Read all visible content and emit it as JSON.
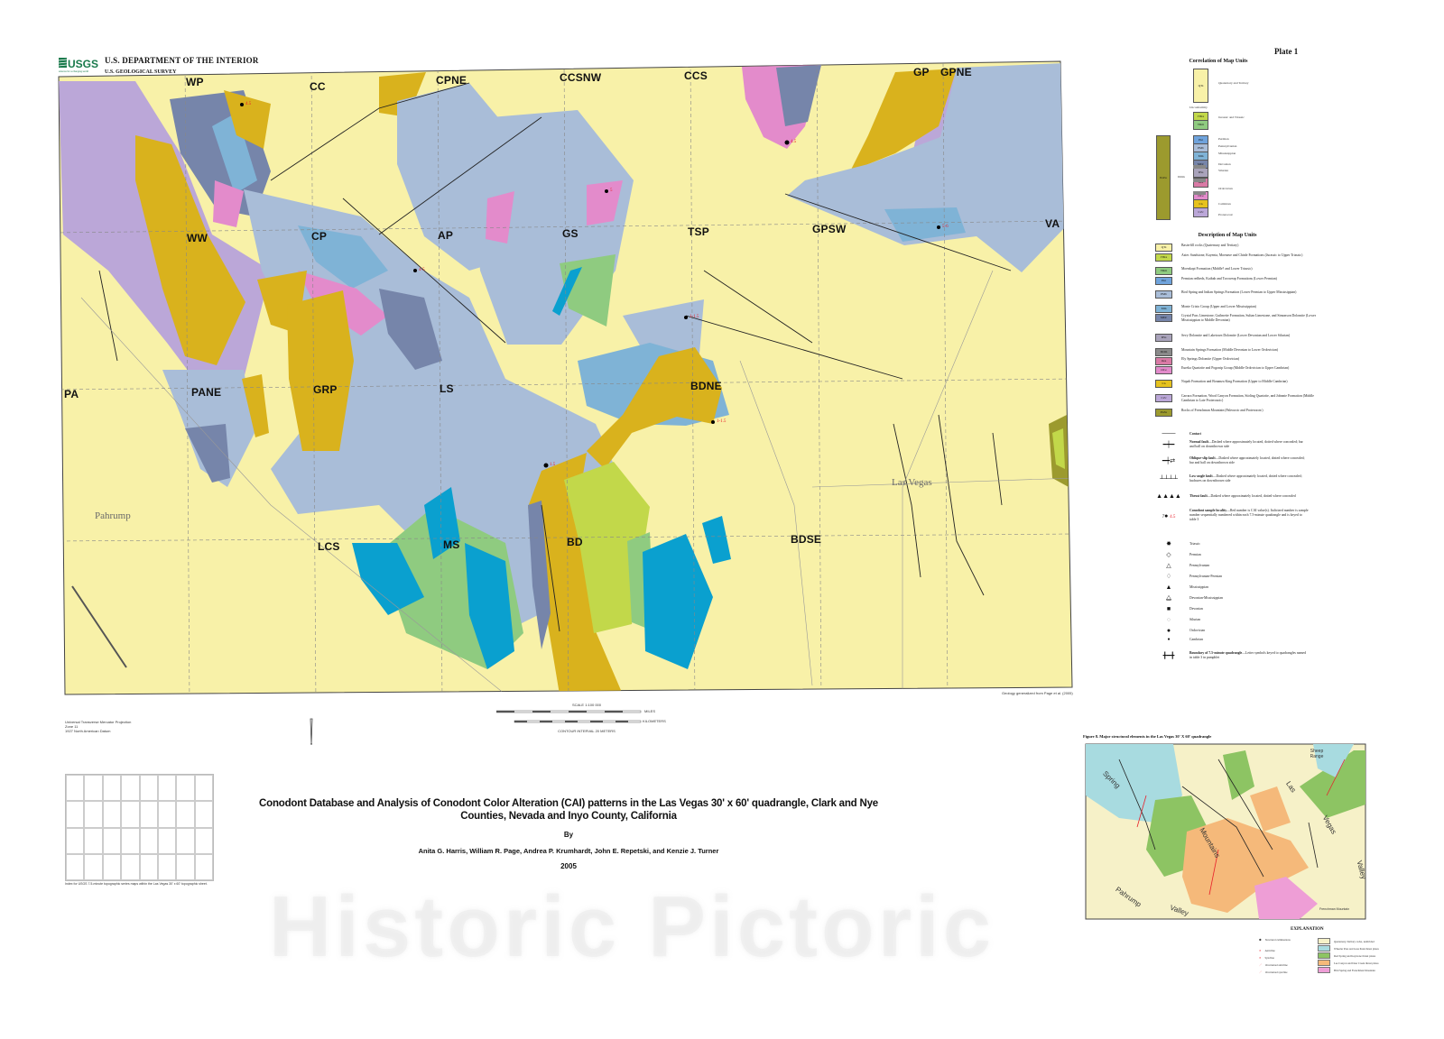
{
  "header": {
    "agency_logo": "USGS",
    "logo_tagline": "science for a changing world",
    "department": "U.S. DEPARTMENT OF THE INTERIOR",
    "survey": "U.S. GEOLOGICAL SURVEY",
    "plate": "Plate 1"
  },
  "map": {
    "quad_labels": [
      "WP",
      "CC",
      "CPNE",
      "CCSNW",
      "CCS",
      "GP",
      "GPNE",
      "WW",
      "CP",
      "AP",
      "GS",
      "TSP",
      "GPSW",
      "VA",
      "PA",
      "PANE",
      "GRP",
      "LS",
      "BDNE",
      "LCS",
      "MS",
      "BD",
      "BDSE"
    ],
    "places": [
      "Pahrump",
      "Las Vegas"
    ],
    "projection": [
      "Universal Transverse Mercator Projection",
      "Zone 11",
      "1927 North American Datum"
    ],
    "scale": {
      "title": "SCALE 1:100 000",
      "miles_label": "MILES",
      "km_label": "KILOMETERS",
      "contour": "CONTOUR INTERVAL 20 METERS"
    },
    "source_note": "Geology generalized from Page et al. (2005)",
    "colors": {
      "basin_fill": "#f8f1a8",
      "gray_blue": "#a9bdd8",
      "slate": "#7685aa",
      "blue": "#0aa0cf",
      "green": "#8fcb80",
      "lime": "#c2d84a",
      "gold": "#d9b21d",
      "purple": "#bba7d8",
      "pink": "#e38bcb",
      "red_cai": "#e8202a"
    }
  },
  "correlation": {
    "title": "Correlation of Map Units",
    "units": [
      "QTs",
      "JTRa",
      "TRm",
      "Pkt",
      "PMb",
      "Mm",
      "MDc",
      "DSs",
      "Oes",
      "OCe",
      "Cn",
      "CZc",
      "PzZu",
      "DOm"
    ],
    "labels": [
      "Quaternary and Tertiary",
      "Jurassic and Triassic",
      "Permian",
      "Pennsylvanian",
      "Mississippian",
      "Devonian",
      "Silurian",
      "Ordovician",
      "Cambrian",
      "Proterozoic"
    ],
    "unconformity": "Unconformity"
  },
  "description": {
    "title": "Description of Map Units",
    "units": [
      {
        "code": "QTs",
        "color": "#f8f1a8",
        "text": "Basin-fill rocks (Quaternary and Tertiary)"
      },
      {
        "code": "JTRa",
        "color": "#c2d84a",
        "text": "Aztec Sandstone, Kayenta, Moenave and Chinle Formations (Jurassic to Upper Triassic)"
      },
      {
        "code": "TRm",
        "color": "#8fcb80",
        "text": "Moenkopi Formation (Middle? and Lower Triassic)"
      },
      {
        "code": "Pkt",
        "color": "#6fa3dc",
        "text": "Permian redbeds, Kaibab and Toroweap Formations (Lower Permian)"
      },
      {
        "code": "PMb",
        "color": "#a9bdd8",
        "text": "Bird Spring and Indian Springs Formation (Lower Permian to Upper Mississippian)"
      },
      {
        "code": "Mm",
        "color": "#7fb3d6",
        "text": "Monte Cristo Group (Upper and Lower Mississippian)"
      },
      {
        "code": "MDc",
        "color": "#7685aa",
        "text": "Crystal Pass Limestone, Guilmette Formation, Sultan Limestone, and Simonson Dolomite (Lower Mississippian to Middle Devonian)"
      },
      {
        "code": "DSs",
        "color": "#a9a3bb",
        "text": "Sevy Dolomite and Laketown Dolomite (Lower Devonian and Lower Silurian)"
      },
      {
        "code": "DOm",
        "color": "#8a8a8a",
        "text": "Mountain Springs Formation (Middle Devonian to Lower Ordovician)"
      },
      {
        "code": "Oes",
        "color": "#d97aa5",
        "text": "Ely Springs Dolomite (Upper Ordovician)"
      },
      {
        "code": "OCe",
        "color": "#e38bcb",
        "text": "Eureka Quartzite and Pogonip Group (Middle Ordovician to Upper Cambrian)"
      },
      {
        "code": "Cn",
        "color": "#e6c21d",
        "text": "Nopah Formation and Bonanza King Formation (Upper to Middle Cambrian)"
      },
      {
        "code": "CZc",
        "color": "#bba7d8",
        "text": "Carrara Formation, Wood Canyon Formation, Stirling Quartzite, and Johnnie Formation (Middle Cambrian to Late Proterozoic)"
      },
      {
        "code": "PzZu",
        "color": "#9c9a2e",
        "text": "Rocks of Frenchman Mountain (Paleozoic and Proterozoic)"
      }
    ]
  },
  "symbols": [
    {
      "icon": "contact-line",
      "label": "Contact",
      "note": ""
    },
    {
      "icon": "normal-fault",
      "label": "Normal fault",
      "note": "—Dashed where approximately located, dotted where concealed; bar and ball on downthrown side"
    },
    {
      "icon": "oblique-slip-fault",
      "label": "Oblique-slip fault",
      "note": "—Dashed where approximately located, dotted where concealed; bar and ball on downthrown side"
    },
    {
      "icon": "low-angle-fault",
      "label": "Low-angle fault",
      "note": "—Dashed where approximately located, dotted where concealed; hachures on downthrown side"
    },
    {
      "icon": "thrust-fault",
      "label": "Thrust fault",
      "note": "—Dashed where approximately located, dotted where concealed"
    },
    {
      "icon": "sample-locality",
      "label": "Conodont sample locality",
      "note": "—Red number is CAI value(s). Italicized number is sample number sequentially numbered within each 7.5-minute quadrangle and is keyed to table 3"
    },
    {
      "icon": "triassic",
      "label": "Triassic",
      "note": ""
    },
    {
      "icon": "permian",
      "label": "Permian",
      "note": ""
    },
    {
      "icon": "pennsylvanian",
      "label": "Pennsylvanian",
      "note": ""
    },
    {
      "icon": "pennsylvanian-permian",
      "label": "Pennsylvanian-Permian",
      "note": ""
    },
    {
      "icon": "mississippian",
      "label": "Mississippian",
      "note": ""
    },
    {
      "icon": "devonian-mississippian",
      "label": "Devonian-Mississippian",
      "note": ""
    },
    {
      "icon": "devonian",
      "label": "Devonian",
      "note": ""
    },
    {
      "icon": "silurian",
      "label": "Silurian",
      "note": ""
    },
    {
      "icon": "ordovician",
      "label": "Ordovician",
      "note": ""
    },
    {
      "icon": "cambrian",
      "label": "Cambrian",
      "note": ""
    },
    {
      "icon": "quadrangle-boundary",
      "label": "Boundary of 7.5-minute quadrangle",
      "note": "—Letter symbols keyed to quadrangles named in table 3 in pamphlet"
    }
  ],
  "sample_legend": {
    "sample_no": "7",
    "cai": "4.5"
  },
  "title_block": {
    "title": "Conodont Database and Analysis of Conodont Color Alteration (CAI) patterns in the Las Vegas 30' x 60' quadrangle, Clark and Nye Counties, Nevada and Inyo County, California",
    "by": "By",
    "authors": "Anita G. Harris, William R. Page, Andrea P. Krumhardt, John E. Repetski, and Kenzie J. Turner",
    "year": "2005"
  },
  "index_map": {
    "caption": "Index for USGS 7.5-minute topographic series maps within the Las Vegas 30' x 60' topographic sheet."
  },
  "inset": {
    "caption": "Figure 8. Major structural elements in the Las Vegas 30' X 60' quadrangle",
    "labels": [
      "Spring",
      "Mountains",
      "Pahrump",
      "Valley",
      "Las",
      "Vegas",
      "Valley",
      "Sheep Range",
      "Frenchman Mountain"
    ],
    "explanation_title": "EXPLANATION",
    "explanation_items": [
      "Structural culminations",
      "Anticline",
      "Syncline",
      "Overturned anticline",
      "Overturned syncline",
      "Quaternary-Tertiary rocks, undivided",
      "Wheeler Pass and Gass Peak thrust plates",
      "Red Spring and Keystone thrust plates",
      "Lee Canyon and Deer Creek thrust plates",
      "Bird Spring and Frenchman Mountain"
    ]
  },
  "watermark": "Historic Pictoric"
}
